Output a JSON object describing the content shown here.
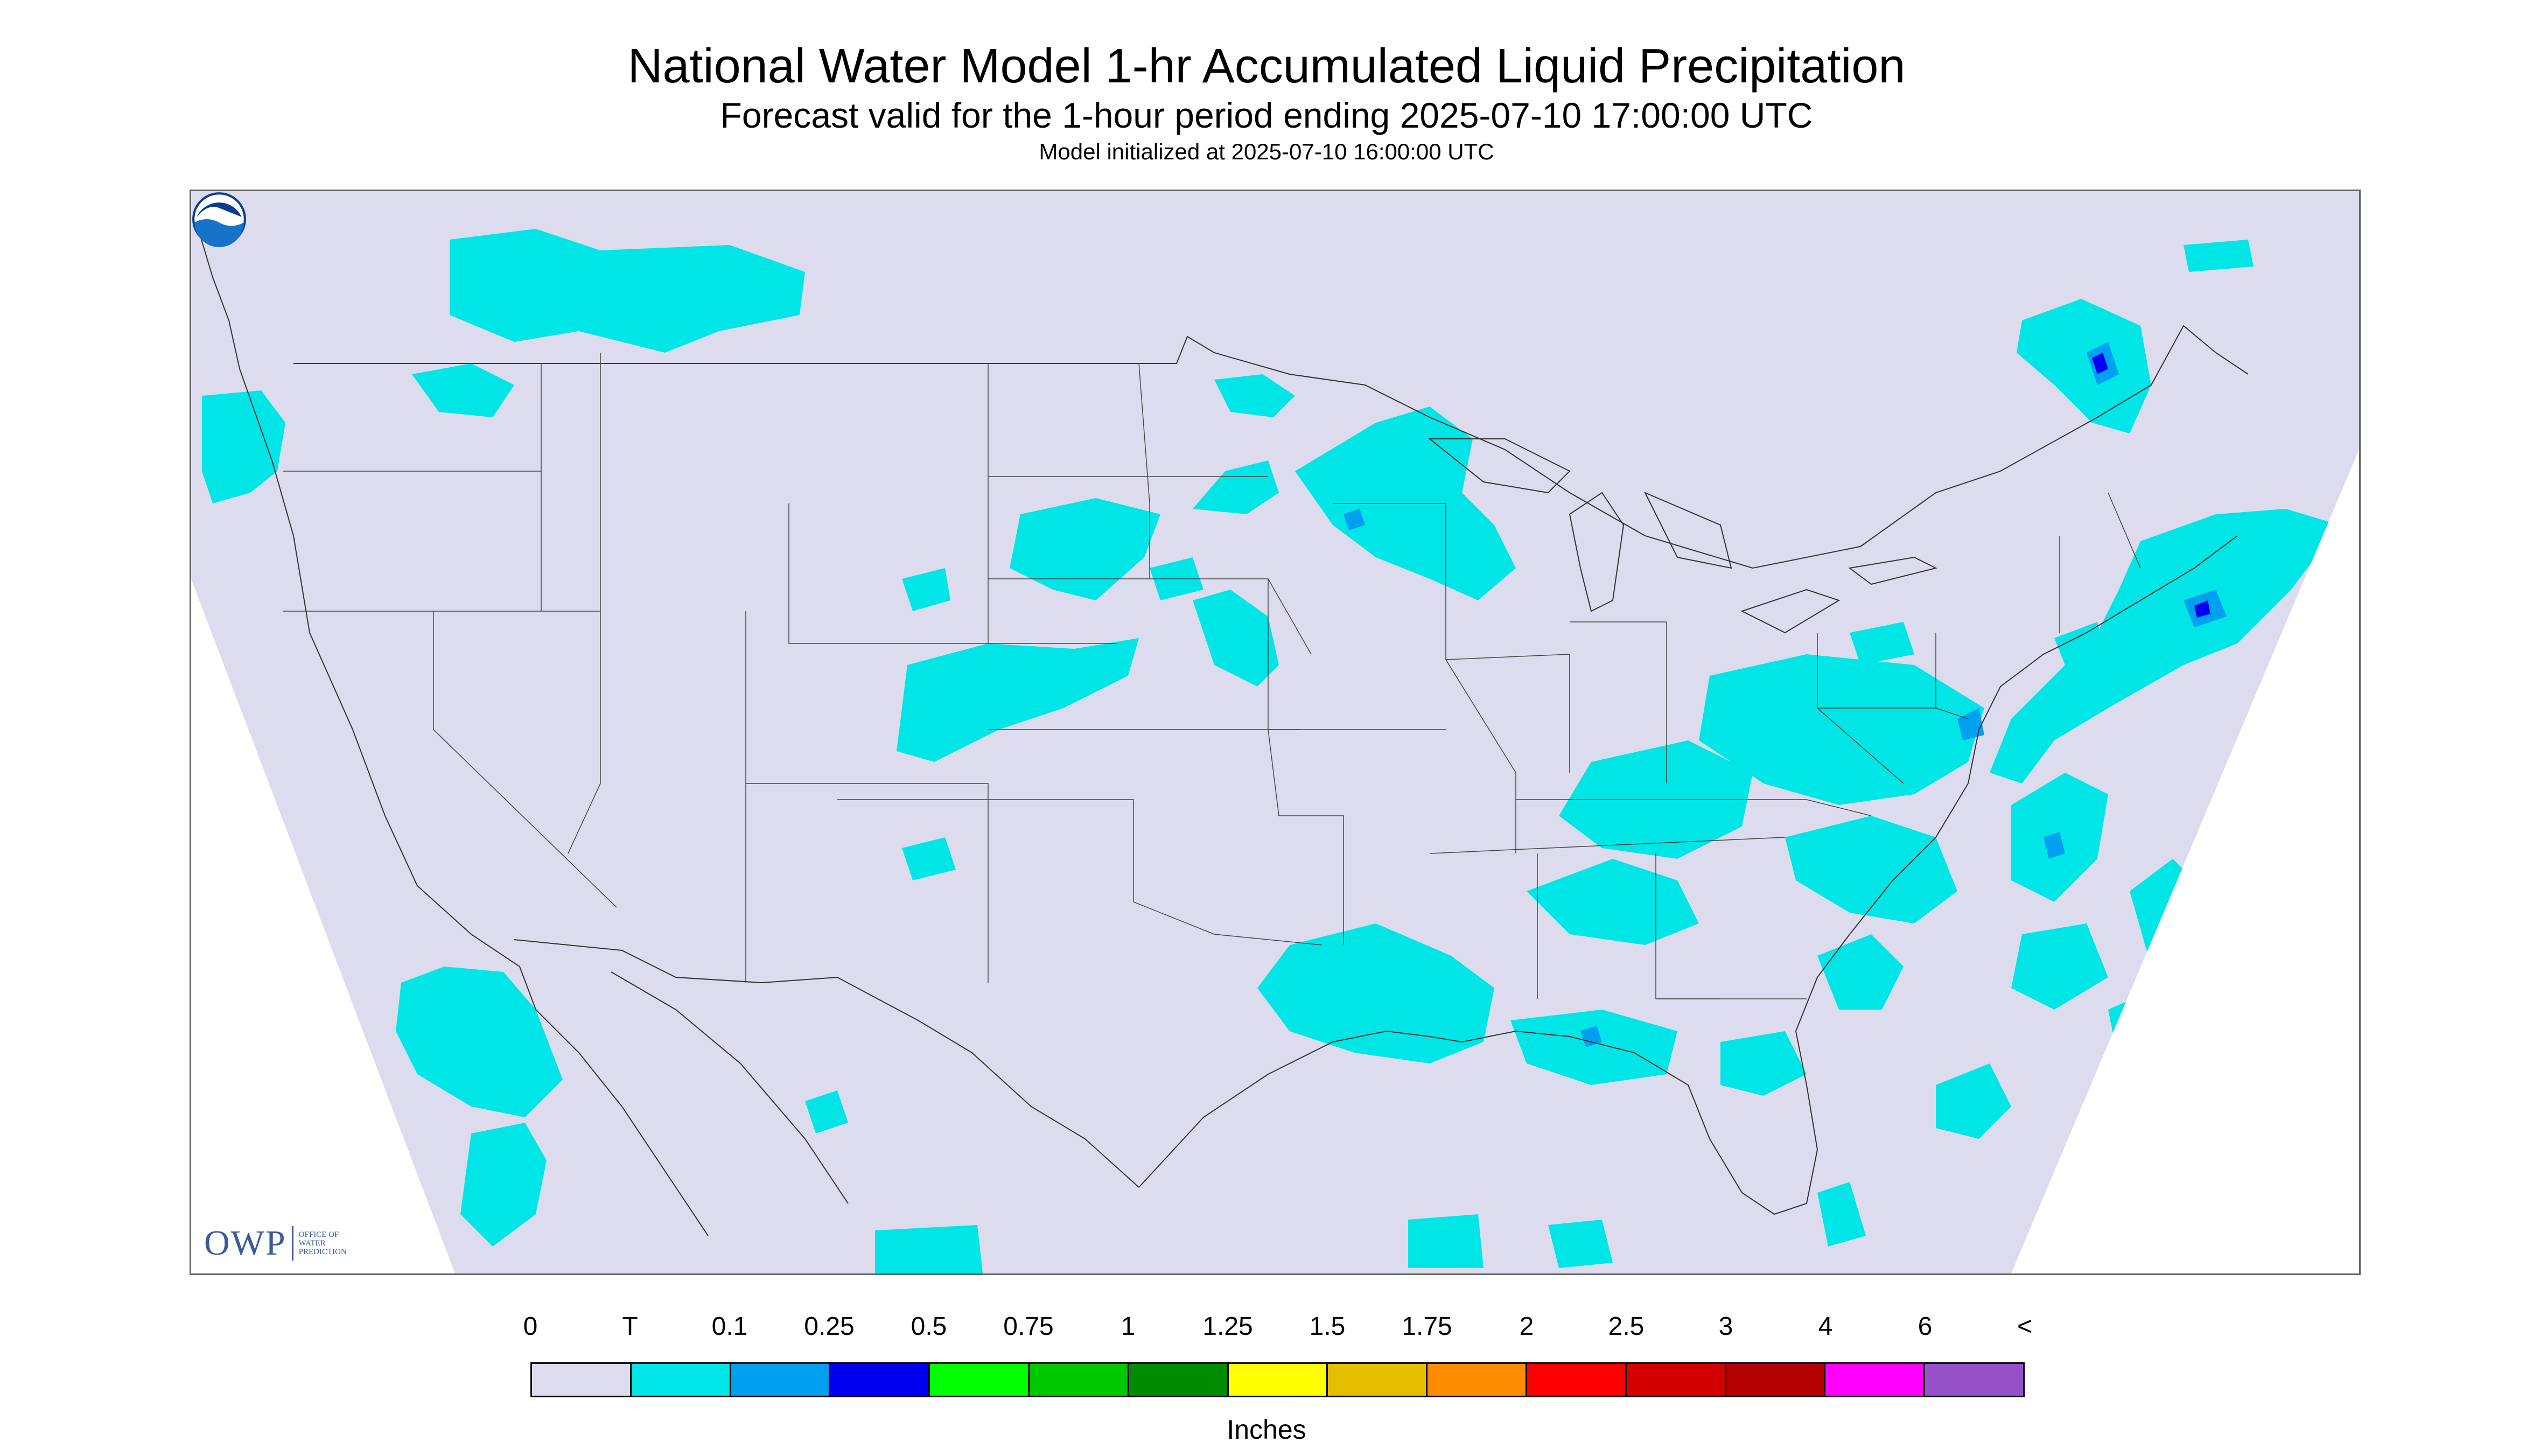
{
  "header": {
    "title": "National Water Model 1-hr Accumulated Liquid Precipitation",
    "subtitle": "Forecast valid for the 1-hour period ending 2025-07-10 17:00:00 UTC",
    "initialized": "Model initialized at 2025-07-10 16:00:00 UTC"
  },
  "logos": {
    "owp_abbr": "OWP",
    "owp_name_line1": "OFFICE OF",
    "owp_name_line2": "WATER",
    "owp_name_line3": "PREDICTION",
    "noaa_icon": "noaa-logo-icon"
  },
  "legend": {
    "units": "Inches",
    "labels": [
      "0",
      "T",
      "0.1",
      "0.25",
      "0.5",
      "0.75",
      "1",
      "1.25",
      "1.5",
      "1.75",
      "2",
      "2.5",
      "3",
      "4",
      "6",
      "<"
    ],
    "colors": [
      "#dcdcee",
      "#00e6e6",
      "#00a0f0",
      "#0000f0",
      "#00ff00",
      "#00c800",
      "#008c00",
      "#ffff00",
      "#e6be00",
      "#ff8c00",
      "#ff0000",
      "#d20000",
      "#b40000",
      "#ff00ff",
      "#9650c8"
    ]
  },
  "colors": {
    "background": "#dcdcee",
    "trace": "#00e6e6",
    "light": "#00a0f0",
    "moderate": "#0000f0",
    "outside_domain": "#ffffff"
  }
}
